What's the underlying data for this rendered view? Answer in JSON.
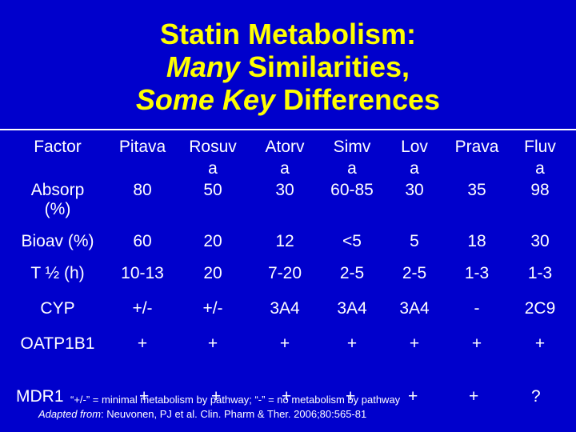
{
  "title": {
    "line1": "Statin Metabolism:",
    "line2_italic": "Many",
    "line2_rest": " Similarities,",
    "line3_italic": "Some Key",
    "line3_rest": " Differences"
  },
  "table": {
    "header": {
      "factor": "Factor",
      "drugs": [
        {
          "line1": "Pitava",
          "line2": ""
        },
        {
          "line1": "Rosuv",
          "line2": "a"
        },
        {
          "line1": "Atorv",
          "line2": "a"
        },
        {
          "line1": "Simv",
          "line2": "a"
        },
        {
          "line1": "Lov",
          "line2": "a"
        },
        {
          "line1": "Prava",
          "line2": ""
        },
        {
          "line1": "Fluv",
          "line2": "a"
        }
      ]
    },
    "rows": [
      {
        "label_line1": "Absorp",
        "label_line2": "(%)",
        "values": [
          "80",
          "50",
          "30",
          "60-85",
          "30",
          "35",
          "98"
        ]
      },
      {
        "label_line1": "Bioav (%)",
        "label_line2": "",
        "values": [
          "60",
          "20",
          "12",
          "<5",
          "5",
          "18",
          "30"
        ]
      },
      {
        "label_line1": "T ½ (h)",
        "label_line2": "",
        "values": [
          "10-13",
          "20",
          "7-20",
          "2-5",
          "2-5",
          "1-3",
          "1-3"
        ]
      },
      {
        "label_line1": "CYP",
        "label_line2": "",
        "values": [
          "+/-",
          "+/-",
          "3A4",
          "3A4",
          "3A4",
          "-",
          "2C9"
        ]
      },
      {
        "label_line1": "OATP1B1",
        "label_line2": "",
        "values": [
          "+",
          "+",
          "+",
          "+",
          "+",
          "+",
          "+"
        ]
      }
    ]
  },
  "mdr1": {
    "label": "MDR1",
    "values": [
      "+",
      "+",
      "+",
      "+",
      "+",
      "+",
      "?"
    ]
  },
  "footnote": "“+/-” = minimal metabolism by pathway; “-” = no metabolism by pathway",
  "citation": {
    "prefix": "Adapted from",
    "text": ": Neuvonen, PJ et al. Clin. Pharm & Ther. 2006;80:565-81"
  }
}
